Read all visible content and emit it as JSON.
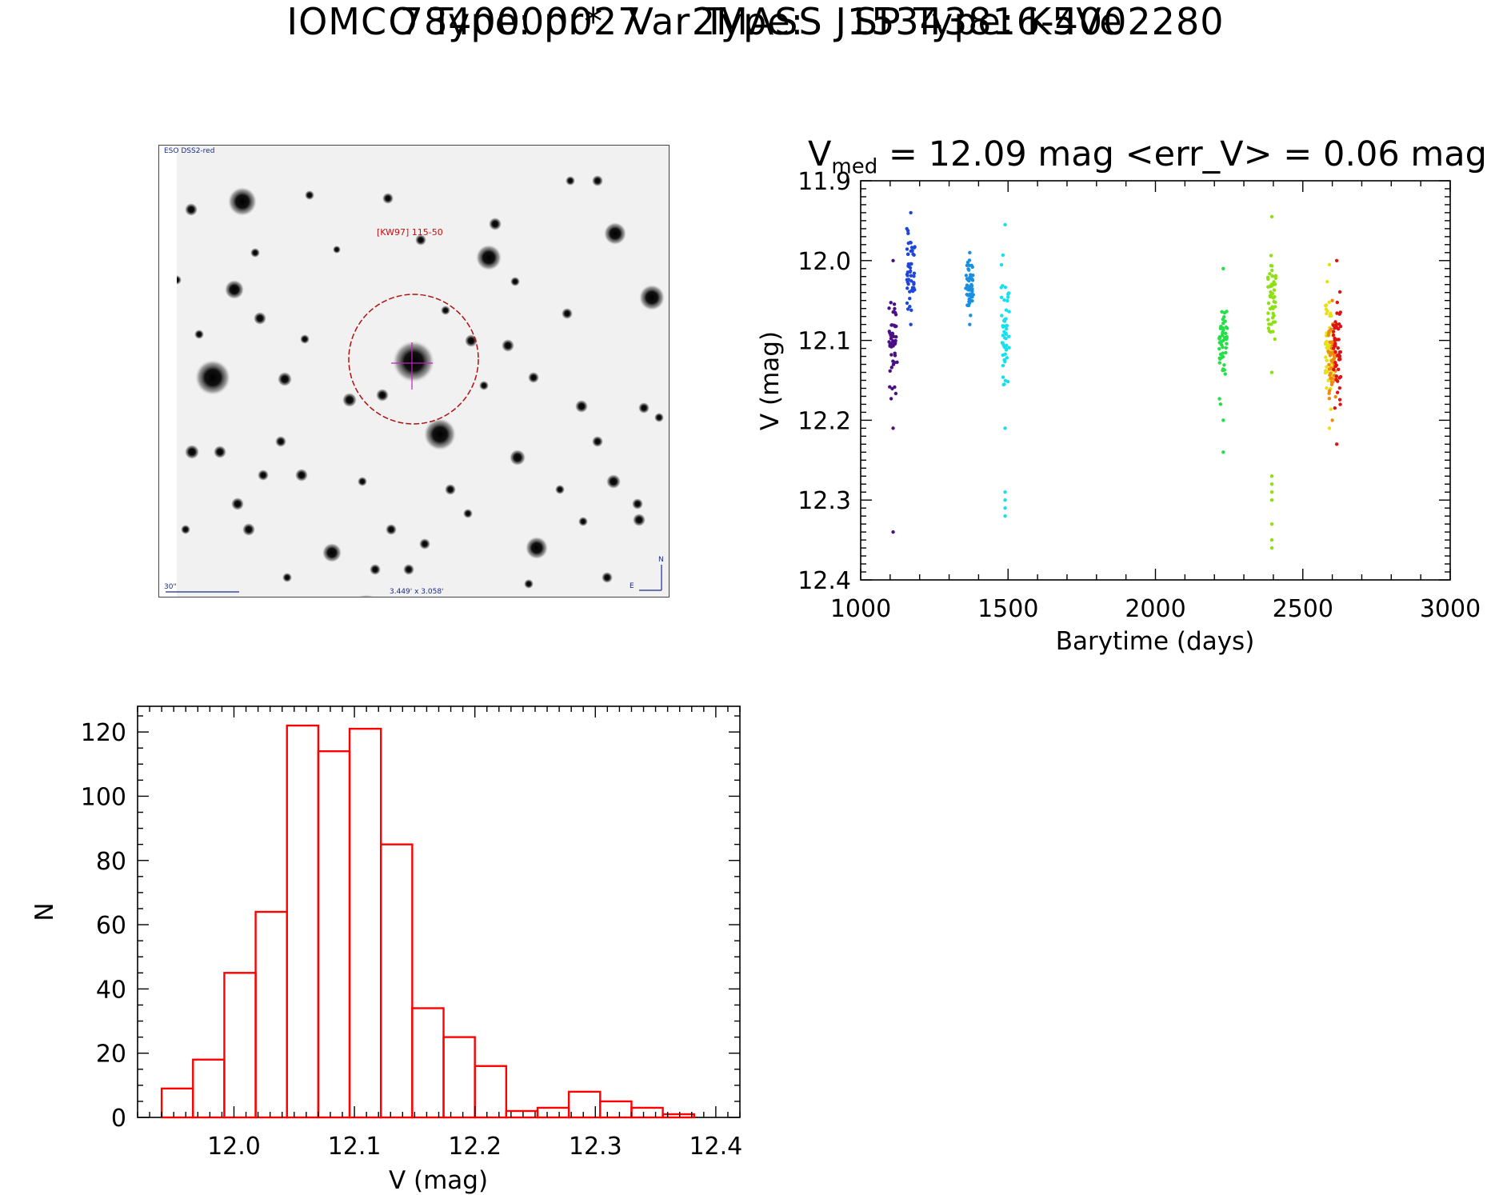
{
  "header": {
    "line1": "IOMC 7840000027    2MASS J15343816-4002280",
    "line2": "O Type: pr*  Var Type:    SP Type: K5Ve"
  },
  "sky_image": {
    "survey_label": "ESO DSS2-red",
    "target_label": "[KW97] 115-50",
    "scale_label": "30\"",
    "size_label": "3.449' x 3.058'",
    "compass_north": "N",
    "compass_east": "E"
  },
  "chart_data": [
    {
      "type": "scatter",
      "title_prefix": "V",
      "title_subscript": "med",
      "title_rest": " = 12.09 mag <err_V> = 0.06 mag",
      "xlabel": "Barytime (days)",
      "ylabel": "V (mag)",
      "xlim": [
        1000,
        3000
      ],
      "ylim": [
        12.4,
        11.9
      ],
      "y_inverted": true,
      "xticks": [
        "1000",
        "1500",
        "2000",
        "2500",
        "3000"
      ],
      "yticks": [
        "11.9",
        "12.0",
        "12.1",
        "12.2",
        "12.3",
        "12.4"
      ],
      "series": [
        {
          "x": 1110,
          "vmin": 12.0,
          "vmax": 12.21,
          "outliers": [
            12.34
          ],
          "color": "#4b0f86"
        },
        {
          "x": 1170,
          "vmin": 11.94,
          "vmax": 12.08,
          "outliers": [],
          "color": "#1f46d8"
        },
        {
          "x": 1370,
          "vmin": 11.99,
          "vmax": 12.08,
          "outliers": [],
          "color": "#1a8fe0"
        },
        {
          "x": 1490,
          "vmin": 11.955,
          "vmax": 12.21,
          "outliers": [
            12.29,
            12.3,
            12.31,
            12.32
          ],
          "color": "#14e0ee"
        },
        {
          "x": 2230,
          "vmin": 12.01,
          "vmax": 12.2,
          "outliers": [
            12.24
          ],
          "color": "#22e045"
        },
        {
          "x": 2395,
          "vmin": 11.945,
          "vmax": 12.14,
          "outliers": [
            12.27,
            12.28,
            12.29,
            12.3,
            12.33,
            12.35,
            12.36
          ],
          "color": "#8ee012"
        },
        {
          "x": 2590,
          "vmin": 12.005,
          "vmax": 12.21,
          "outliers": [],
          "color": "#e8e010"
        },
        {
          "x": 2600,
          "vmin": 12.05,
          "vmax": 12.2,
          "outliers": [],
          "color": "#f08a10"
        },
        {
          "x": 2615,
          "vmin": 12.0,
          "vmax": 12.23,
          "outliers": [],
          "color": "#dd1414"
        }
      ]
    },
    {
      "type": "bar",
      "style": "histogram-outline",
      "color": "#ff0000",
      "xlabel": "V (mag)",
      "ylabel": "N",
      "xlim": [
        11.92,
        12.42
      ],
      "ylim": [
        0,
        128
      ],
      "xticks": [
        "12.0",
        "12.1",
        "12.2",
        "12.3",
        "12.4"
      ],
      "yticks": [
        "0",
        "20",
        "40",
        "60",
        "80",
        "100",
        "120"
      ],
      "bin_start": 11.94,
      "bin_width": 0.026,
      "values": [
        9,
        18,
        45,
        64,
        122,
        114,
        121,
        85,
        34,
        25,
        16,
        2,
        3,
        8,
        5,
        3,
        1
      ]
    }
  ]
}
